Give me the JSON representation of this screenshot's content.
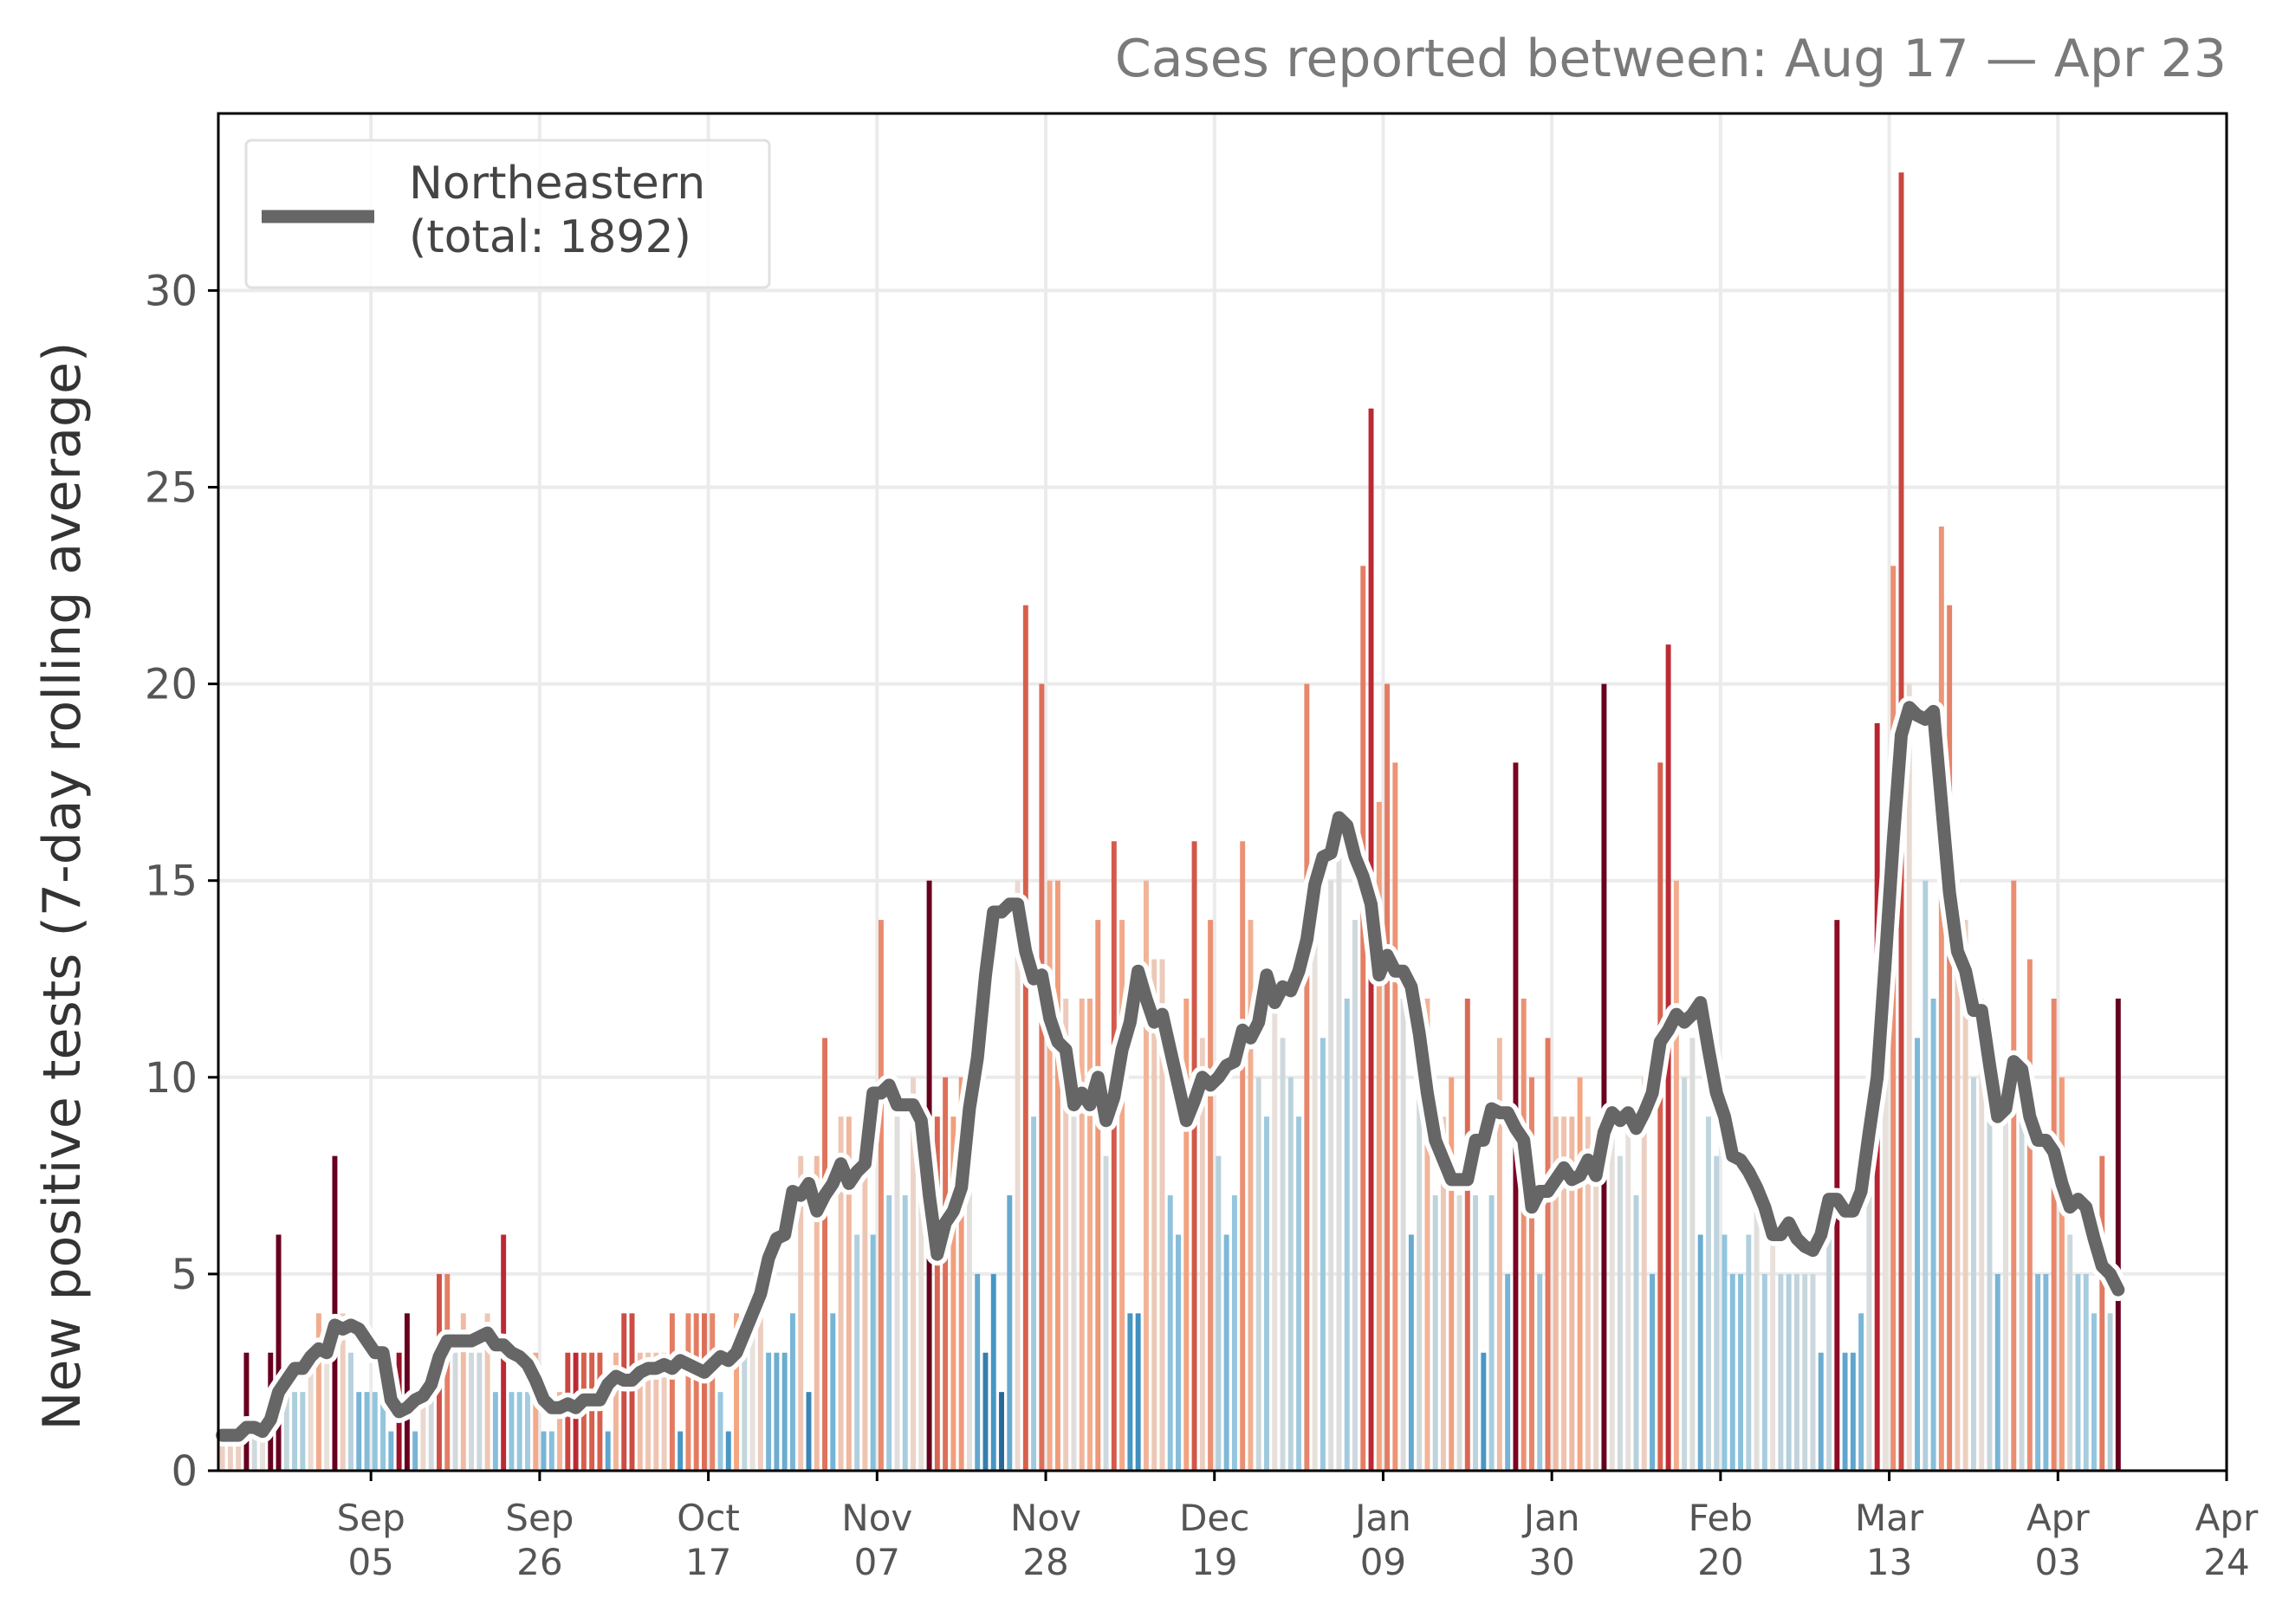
{
  "chart_data": {
    "type": "bar",
    "title": "",
    "subtitle": "Cases reported between: Aug 17 — Apr 23",
    "ylabel": "New positive tests (7-day rolling average)",
    "xlabel": "",
    "ylim": [
      0,
      34.5
    ],
    "yticks": [
      0,
      5,
      10,
      15,
      20,
      25,
      30
    ],
    "grid": true,
    "legend_position": "top-left",
    "x_start_date": "2021-08-17",
    "x_end_date": "2022-04-24",
    "xticks": [
      {
        "date": "2021-09-05",
        "month": "Sep",
        "day": "05"
      },
      {
        "date": "2021-09-26",
        "month": "Sep",
        "day": "26"
      },
      {
        "date": "2021-10-17",
        "month": "Oct",
        "day": "17"
      },
      {
        "date": "2021-11-07",
        "month": "Nov",
        "day": "07"
      },
      {
        "date": "2021-11-28",
        "month": "Nov",
        "day": "28"
      },
      {
        "date": "2021-12-19",
        "month": "Dec",
        "day": "19"
      },
      {
        "date": "2022-01-09",
        "month": "Jan",
        "day": "09"
      },
      {
        "date": "2022-01-30",
        "month": "Jan",
        "day": "30"
      },
      {
        "date": "2022-02-20",
        "month": "Feb",
        "day": "20"
      },
      {
        "date": "2022-03-13",
        "month": "Mar",
        "day": "13"
      },
      {
        "date": "2022-04-03",
        "month": "Apr",
        "day": "03"
      },
      {
        "date": "2022-04-24",
        "month": "Apr",
        "day": "24"
      }
    ],
    "daily_cases": [
      1,
      1,
      1,
      3,
      1,
      1,
      3,
      6,
      2,
      2,
      2,
      3,
      4,
      3,
      8,
      4,
      3,
      2,
      2,
      2,
      2,
      1,
      3,
      4,
      1,
      2,
      2,
      5,
      5,
      3,
      4,
      3,
      3,
      4,
      2,
      6,
      2,
      2,
      2,
      3,
      1,
      1,
      2,
      3,
      3,
      3,
      3,
      3,
      1,
      3,
      4,
      4,
      3,
      3,
      3,
      3,
      4,
      1,
      4,
      4,
      4,
      4,
      2,
      1,
      4,
      3,
      4,
      5,
      3,
      3,
      3,
      4,
      8,
      2,
      8,
      11,
      4,
      9,
      9,
      6,
      9,
      6,
      14,
      7,
      9,
      7,
      10,
      9,
      15,
      9,
      10,
      9,
      10,
      9,
      5,
      3,
      5,
      2,
      7,
      15,
      22,
      9,
      20,
      15,
      15,
      12,
      9,
      12,
      12,
      14,
      8,
      16,
      14,
      4,
      4,
      15,
      13,
      13,
      7,
      6,
      12,
      16,
      11,
      14,
      8,
      6,
      7,
      16,
      14,
      10,
      9,
      12,
      11,
      10,
      9,
      20,
      15,
      11,
      15,
      16,
      12,
      14,
      23,
      27,
      17,
      20,
      18,
      12,
      6,
      10,
      12,
      7,
      9,
      10,
      7,
      12,
      7,
      3,
      7,
      11,
      5,
      18,
      12,
      10,
      5,
      11,
      9,
      9,
      9,
      10,
      9,
      8,
      20,
      9,
      8,
      9,
      7,
      10,
      5,
      18,
      21,
      15,
      10,
      11,
      6,
      9,
      8,
      6,
      5,
      5,
      6,
      7,
      5,
      6,
      5,
      5,
      5,
      5,
      5,
      3,
      6,
      14,
      3,
      3,
      4,
      8,
      19,
      13,
      23,
      33,
      20,
      11,
      15,
      12,
      24,
      22,
      15,
      14,
      10,
      12,
      9,
      5,
      9,
      15,
      9,
      13,
      5,
      5,
      12,
      10,
      6,
      5,
      5,
      4,
      8,
      4,
      12
    ],
    "series": [
      {
        "name": "Northeastern\n(total: 1892)",
        "label_line1": "Northeastern",
        "label_line2": "(total: 1892)",
        "color": "#666666",
        "rolling_avg": [
          0.9,
          0.9,
          0.9,
          1.1,
          1.1,
          1.0,
          1.3,
          2.0,
          2.3,
          2.6,
          2.6,
          2.9,
          3.1,
          3.0,
          3.7,
          3.6,
          3.7,
          3.6,
          3.3,
          3.0,
          3.0,
          1.8,
          1.5,
          1.6,
          1.8,
          1.9,
          2.2,
          2.9,
          3.3,
          3.3,
          3.3,
          3.3,
          3.4,
          3.5,
          3.2,
          3.2,
          3.0,
          2.9,
          2.7,
          2.3,
          1.8,
          1.6,
          1.6,
          1.7,
          1.6,
          1.8,
          1.8,
          1.8,
          2.2,
          2.4,
          2.3,
          2.3,
          2.5,
          2.6,
          2.6,
          2.7,
          2.6,
          2.8,
          2.7,
          2.6,
          2.5,
          2.7,
          2.9,
          2.8,
          3.0,
          3.5,
          4.0,
          4.5,
          5.4,
          5.9,
          6.0,
          7.1,
          7.0,
          7.3,
          6.6,
          7.0,
          7.3,
          7.8,
          7.3,
          7.6,
          7.8,
          9.6,
          9.6,
          9.8,
          9.3,
          9.3,
          9.3,
          8.9,
          7.0,
          5.5,
          6.3,
          6.6,
          7.2,
          9.2,
          10.5,
          12.6,
          14.2,
          14.2,
          14.4,
          14.4,
          13.2,
          12.5,
          12.6,
          11.5,
          10.9,
          10.7,
          9.3,
          9.6,
          9.3,
          10.0,
          8.9,
          9.5,
          10.7,
          11.4,
          12.7,
          12.0,
          11.4,
          11.6,
          10.7,
          9.8,
          8.9,
          9.4,
          10.0,
          9.8,
          10.0,
          10.3,
          10.4,
          11.2,
          11.0,
          11.4,
          12.6,
          11.9,
          12.3,
          12.2,
          12.7,
          13.5,
          14.9,
          15.6,
          15.7,
          16.6,
          16.4,
          15.6,
          15.1,
          14.4,
          12.6,
          13.1,
          12.7,
          12.7,
          12.3,
          11.1,
          9.6,
          8.4,
          7.9,
          7.4,
          7.4,
          7.4,
          8.4,
          8.4,
          9.2,
          9.1,
          9.1,
          8.7,
          8.4,
          6.7,
          7.1,
          7.1,
          7.4,
          7.7,
          7.4,
          7.5,
          7.9,
          7.5,
          8.6,
          9.1,
          8.9,
          9.1,
          8.7,
          9.1,
          9.6,
          10.9,
          11.2,
          11.6,
          11.4,
          11.6,
          11.9,
          10.7,
          9.6,
          9.0,
          8.0,
          7.9,
          7.6,
          7.2,
          6.7,
          6.0,
          6.0,
          6.3,
          5.9,
          5.7,
          5.6,
          6.0,
          6.9,
          6.9,
          6.6,
          6.6,
          7.1,
          8.6,
          10.0,
          12.9,
          16.0,
          18.7,
          19.4,
          19.2,
          19.1,
          19.3,
          17.0,
          14.7,
          13.2,
          12.7,
          11.7,
          11.7,
          10.3,
          9.0,
          9.2,
          10.4,
          10.2,
          9.0,
          8.4,
          8.4,
          8.1,
          7.3,
          6.7,
          6.9,
          6.7,
          5.9,
          5.2,
          5.0,
          4.6
        ]
      }
    ]
  }
}
